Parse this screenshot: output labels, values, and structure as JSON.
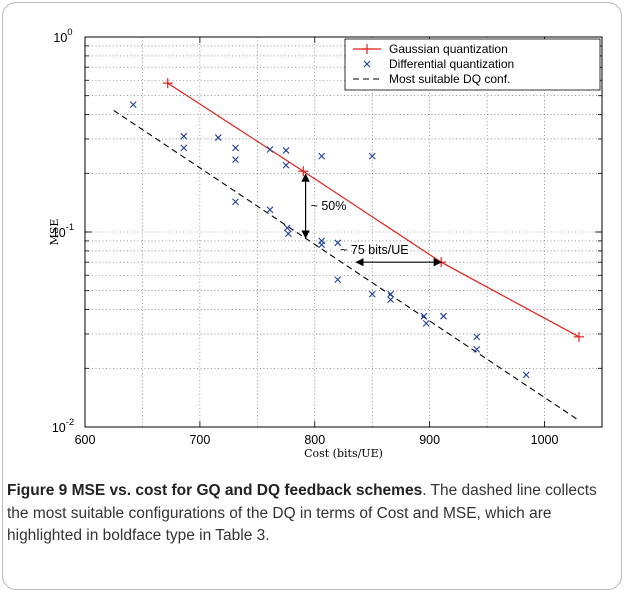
{
  "chart_data": {
    "type": "scatter",
    "xlabel": "Cost (bits/UE)",
    "ylabel": "MSE",
    "xlim": [
      600,
      1050
    ],
    "ylim": [
      0.01,
      1
    ],
    "yscale": "log",
    "grid": true,
    "legend_position": "top-right",
    "x_ticks": [
      600,
      700,
      800,
      900,
      1000
    ],
    "x_tick_labels": [
      "600",
      "700",
      "800",
      "900",
      "1000"
    ],
    "y_ticks": [
      0.01,
      0.1,
      1
    ],
    "y_tick_labels": [
      {
        "base": "10",
        "exp": "-2"
      },
      {
        "base": "10",
        "exp": "-1"
      },
      {
        "base": "10",
        "exp": "0"
      }
    ],
    "series": [
      {
        "name": "Gaussian quantization",
        "style": "line-plus",
        "color": "#e0201b",
        "points": [
          [
            672,
            0.58
          ],
          [
            790,
            0.205
          ],
          [
            910,
            0.07
          ],
          [
            1030,
            0.029
          ]
        ]
      },
      {
        "name": "Differential quantization",
        "style": "cross",
        "color": "#1f3f9a",
        "points": [
          [
            642,
            0.45
          ],
          [
            686,
            0.31
          ],
          [
            686,
            0.27
          ],
          [
            716,
            0.305
          ],
          [
            731,
            0.27
          ],
          [
            731,
            0.235
          ],
          [
            731,
            0.143
          ],
          [
            761,
            0.265
          ],
          [
            775,
            0.262
          ],
          [
            775,
            0.22
          ],
          [
            761,
            0.13
          ],
          [
            776,
            0.105
          ],
          [
            777,
            0.098
          ],
          [
            806,
            0.245
          ],
          [
            806,
            0.09
          ],
          [
            806,
            0.086
          ],
          [
            820,
            0.088
          ],
          [
            820,
            0.057
          ],
          [
            850,
            0.245
          ],
          [
            850,
            0.048
          ],
          [
            866,
            0.048
          ],
          [
            866,
            0.045
          ],
          [
            895,
            0.037
          ],
          [
            897,
            0.034
          ],
          [
            912,
            0.037
          ],
          [
            941,
            0.029
          ],
          [
            941,
            0.025
          ],
          [
            984,
            0.0185
          ]
        ]
      },
      {
        "name": "Most suitable DQ conf.",
        "style": "dashed",
        "color": "#000000",
        "points": [
          [
            625,
            0.42
          ],
          [
            1030,
            0.0108
          ]
        ]
      }
    ],
    "annotations": [
      {
        "text": "~ 50%",
        "arrow": "vertical",
        "x": 792,
        "y_from": 0.205,
        "y_to": 0.09
      },
      {
        "text": "~ 75 bits/UE",
        "arrow": "horizontal",
        "y": 0.07,
        "x_from": 836,
        "x_to": 910
      }
    ]
  },
  "caption": {
    "title": "Figure 9 MSE vs. cost for GQ and DQ feedback schemes",
    "body": ". The dashed line collects the most suitable configurations of the DQ in terms of Cost and MSE, which are highlighted in boldface type in Table 3."
  }
}
